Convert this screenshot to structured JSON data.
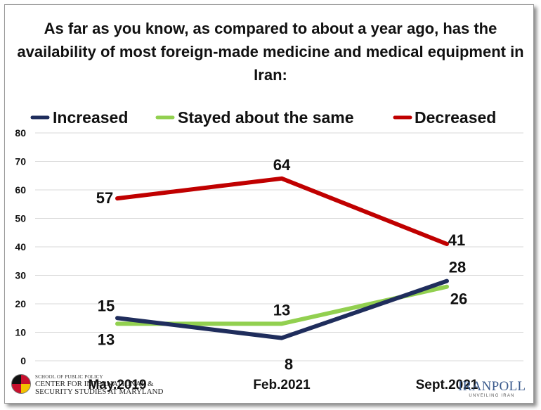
{
  "title": "As far as you know, as compared to about a year ago, has the availability of most foreign-made medicine and medical equipment in Iran:",
  "chart_data": {
    "type": "line",
    "categories": [
      "May.2019",
      "Feb.2021",
      "Sept.2021"
    ],
    "series": [
      {
        "name": "Increased",
        "color": "#1f2d5c",
        "values": [
          15,
          8,
          28
        ]
      },
      {
        "name": "Stayed about the same",
        "color": "#92d050",
        "values": [
          13,
          13,
          26
        ]
      },
      {
        "name": "Decreased",
        "color": "#c00000",
        "values": [
          57,
          64,
          41
        ]
      }
    ],
    "ylim": [
      0,
      80
    ],
    "yticks": [
      0,
      10,
      20,
      30,
      40,
      50,
      60,
      70,
      80
    ],
    "grid": true,
    "legend": "top"
  },
  "footer": {
    "left_logo_small": "SCHOOL OF PUBLIC POLICY",
    "left_logo_line1": "CENTER FOR INTERNATIONAL &",
    "left_logo_line2": "SECURITY STUDIES AT MARYLAND",
    "right_logo_name": "IRANPOLL",
    "right_logo_tagline": "UNVEILING IRAN"
  }
}
